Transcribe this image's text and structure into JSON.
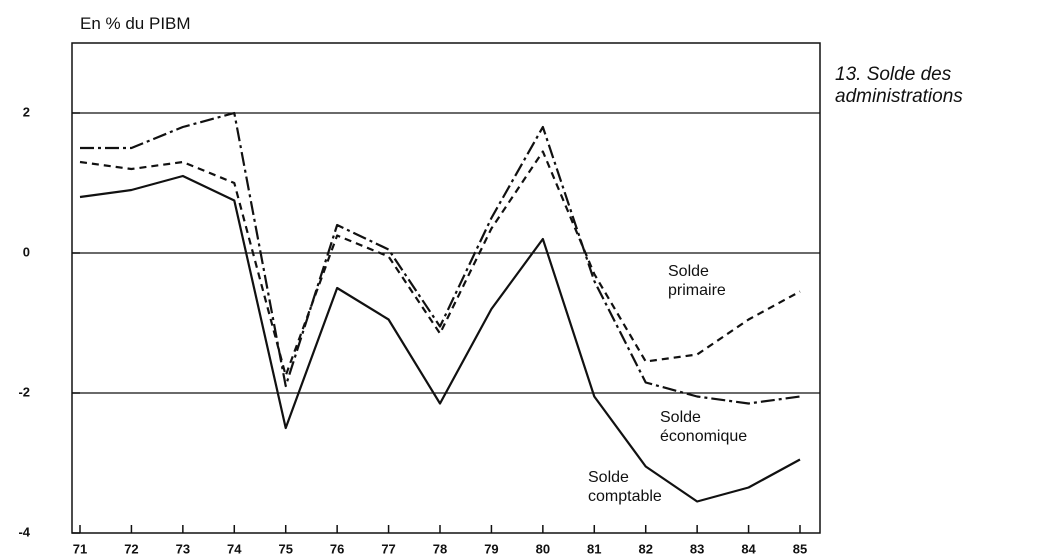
{
  "chart_data": {
    "type": "line",
    "title": "13. Solde des administrations",
    "y_label": "En % du PIBM",
    "categories": [
      "71",
      "72",
      "73",
      "74",
      "75",
      "76",
      "77",
      "78",
      "79",
      "80",
      "81",
      "82",
      "83",
      "84",
      "85"
    ],
    "series": [
      {
        "name": "Solde comptable",
        "color": "#111111",
        "style": "solid",
        "values": [
          0.8,
          0.9,
          1.1,
          0.75,
          -2.5,
          -0.5,
          -0.95,
          -2.15,
          -0.8,
          0.2,
          -2.05,
          -3.05,
          -3.55,
          -3.35,
          -2.95
        ]
      },
      {
        "name": "Solde économique",
        "color": "#111111",
        "style": "dashdot",
        "values": [
          1.5,
          1.5,
          1.8,
          2.0,
          -1.9,
          0.4,
          0.05,
          -1.05,
          0.5,
          1.8,
          -0.4,
          -1.85,
          -2.05,
          -2.15,
          -2.05
        ]
      },
      {
        "name": "Solde primaire",
        "color": "#111111",
        "style": "dashed",
        "values": [
          1.3,
          1.2,
          1.3,
          1.0,
          -1.75,
          0.25,
          -0.05,
          -1.15,
          0.35,
          1.45,
          -0.3,
          -1.55,
          -1.45,
          -0.95,
          -0.55
        ]
      }
    ],
    "ylim": [
      -4,
      3
    ],
    "yticks": [
      -4,
      -2,
      0,
      2
    ],
    "grid": true
  }
}
